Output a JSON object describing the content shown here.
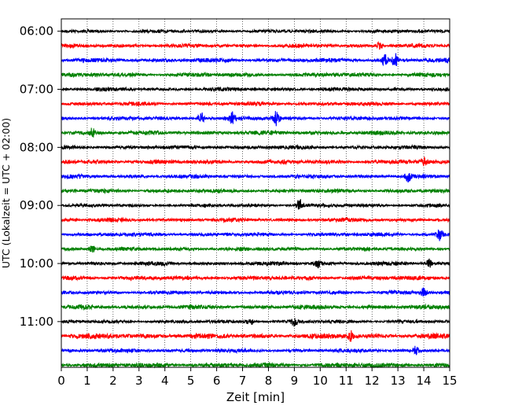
{
  "chart_data": {
    "type": "line",
    "xlabel": "Zeit  [min]",
    "ylabel": "UTC (Lokalzeit = UTC + 02:00)",
    "xlim": [
      0,
      15
    ],
    "x_ticks": [
      0,
      1,
      2,
      3,
      4,
      5,
      6,
      7,
      8,
      9,
      10,
      11,
      12,
      13,
      14,
      15
    ],
    "x_grid": "dotted vertical at every minute",
    "y_ticks": [
      "06:00",
      "07:00",
      "08:00",
      "09:00",
      "10:00",
      "11:00"
    ],
    "trace_interval_minutes": 15,
    "colors": [
      "#000000",
      "#ff0000",
      "#0000ff",
      "#008000"
    ],
    "traces": [
      {
        "start": "06:00",
        "color": "#000000",
        "amplitude": 0.35
      },
      {
        "start": "06:15",
        "color": "#ff0000",
        "amplitude": 0.4,
        "events": [
          {
            "t": 12.3,
            "a": 0.6
          }
        ]
      },
      {
        "start": "06:30",
        "color": "#0000ff",
        "amplitude": 0.45,
        "events": [
          {
            "t": 12.5,
            "a": 0.8
          },
          {
            "t": 12.9,
            "a": 0.9
          }
        ]
      },
      {
        "start": "06:45",
        "color": "#008000",
        "amplitude": 0.45
      },
      {
        "start": "07:00",
        "color": "#000000",
        "amplitude": 0.4
      },
      {
        "start": "07:15",
        "color": "#ff0000",
        "amplitude": 0.4
      },
      {
        "start": "07:30",
        "color": "#0000ff",
        "amplitude": 0.4,
        "events": [
          {
            "t": 5.4,
            "a": 0.9
          },
          {
            "t": 6.6,
            "a": 0.9
          },
          {
            "t": 8.3,
            "a": 1.0
          }
        ]
      },
      {
        "start": "07:45",
        "color": "#008000",
        "amplitude": 0.45,
        "events": [
          {
            "t": 1.2,
            "a": 0.6
          }
        ]
      },
      {
        "start": "08:00",
        "color": "#000000",
        "amplitude": 0.4
      },
      {
        "start": "08:15",
        "color": "#ff0000",
        "amplitude": 0.45,
        "events": [
          {
            "t": 14.0,
            "a": 0.6
          }
        ]
      },
      {
        "start": "08:30",
        "color": "#0000ff",
        "amplitude": 0.4,
        "events": [
          {
            "t": 13.4,
            "a": 0.6
          }
        ]
      },
      {
        "start": "08:45",
        "color": "#008000",
        "amplitude": 0.4
      },
      {
        "start": "09:00",
        "color": "#000000",
        "amplitude": 0.35,
        "events": [
          {
            "t": 9.2,
            "a": 1.1
          }
        ]
      },
      {
        "start": "09:15",
        "color": "#ff0000",
        "amplitude": 0.4
      },
      {
        "start": "09:30",
        "color": "#0000ff",
        "amplitude": 0.4,
        "events": [
          {
            "t": 14.6,
            "a": 1.0
          }
        ]
      },
      {
        "start": "09:45",
        "color": "#008000",
        "amplitude": 0.4,
        "events": [
          {
            "t": 1.2,
            "a": 0.6
          }
        ]
      },
      {
        "start": "10:00",
        "color": "#000000",
        "amplitude": 0.4,
        "events": [
          {
            "t": 9.9,
            "a": 0.7
          },
          {
            "t": 14.2,
            "a": 0.6
          }
        ]
      },
      {
        "start": "10:15",
        "color": "#ff0000",
        "amplitude": 0.45
      },
      {
        "start": "10:30",
        "color": "#0000ff",
        "amplitude": 0.4,
        "events": [
          {
            "t": 14.0,
            "a": 0.6
          }
        ]
      },
      {
        "start": "10:45",
        "color": "#008000",
        "amplitude": 0.45
      },
      {
        "start": "11:00",
        "color": "#000000",
        "amplitude": 0.35,
        "events": [
          {
            "t": 7.3,
            "a": 0.6
          },
          {
            "t": 9.0,
            "a": 0.6
          }
        ]
      },
      {
        "start": "11:15",
        "color": "#ff0000",
        "amplitude": 0.55,
        "events": [
          {
            "t": 11.2,
            "a": 0.7
          }
        ]
      },
      {
        "start": "11:30",
        "color": "#0000ff",
        "amplitude": 0.4,
        "events": [
          {
            "t": 13.7,
            "a": 0.6
          }
        ]
      },
      {
        "start": "11:45",
        "color": "#008000",
        "amplitude": 0.5
      }
    ]
  }
}
